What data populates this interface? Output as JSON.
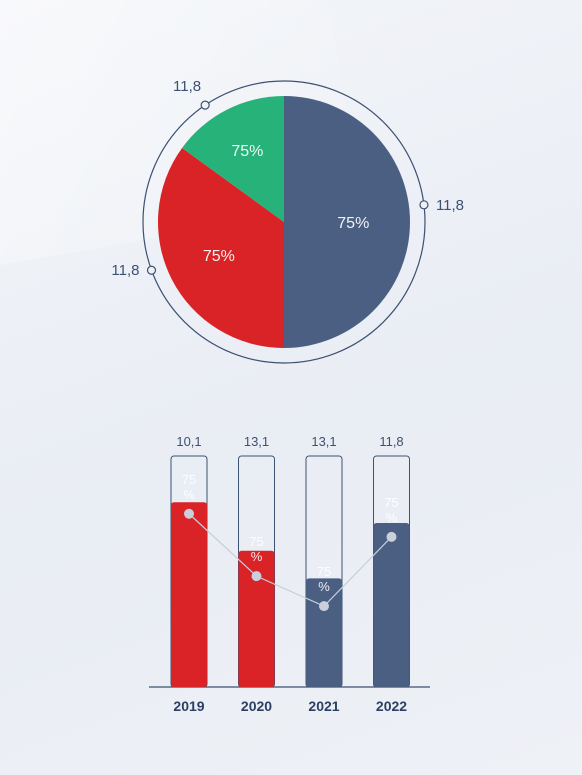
{
  "chart_data": [
    {
      "type": "pie",
      "slices": [
        {
          "label": "75%",
          "value": 50,
          "color": "#4a5f82"
        },
        {
          "label": "75%",
          "value": 35,
          "color": "#d92326"
        },
        {
          "label": "75%",
          "value": 15,
          "color": "#27b27a"
        }
      ],
      "callouts": [
        "11,8",
        "11,8",
        "11,8"
      ],
      "ring_color": "#3d5172"
    },
    {
      "type": "bar",
      "categories": [
        "2019",
        "2020",
        "2021",
        "2022"
      ],
      "top_labels": [
        "10,1",
        "13,1",
        "13,1",
        "11,8"
      ],
      "fill_fraction": [
        0.8,
        0.59,
        0.47,
        0.71
      ],
      "bar_colors": [
        "#d92326",
        "#d92326",
        "#4a5f82",
        "#4a5f82"
      ],
      "bar_labels": [
        "75\n%",
        "75\n%",
        "75\n%",
        "75\n%"
      ],
      "line_values": [
        0.75,
        0.48,
        0.35,
        0.65
      ]
    }
  ]
}
